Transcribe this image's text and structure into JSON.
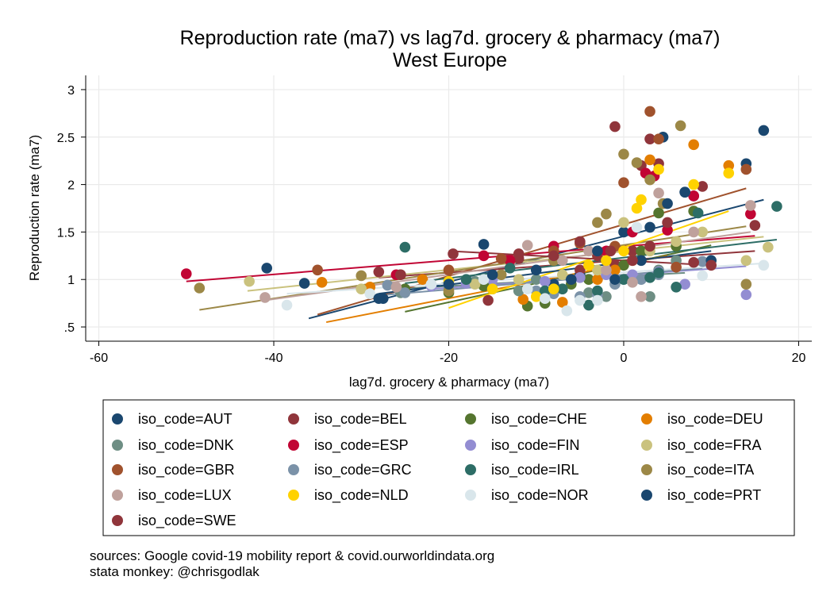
{
  "chart_data": {
    "type": "scatter",
    "title": "Reproduction rate (ma7) vs lag7d. grocery & pharmacy (ma7)",
    "subtitle": "West Europe",
    "xlabel": "lag7d. grocery & pharmacy (ma7)",
    "ylabel": "Reproduction rate (ma7)",
    "xlim": [
      -61.5,
      21.5
    ],
    "ylim": [
      0.35,
      3.15
    ],
    "x_ticks": [
      -60,
      -40,
      -20,
      0,
      20
    ],
    "x_tick_labels": [
      "-60",
      "-40",
      "-20",
      "0",
      "20"
    ],
    "y_ticks": [
      0.5,
      1,
      1.5,
      2,
      2.5,
      3
    ],
    "y_tick_labels": [
      ".5",
      "1",
      "1.5",
      "2",
      "2.5",
      "3"
    ],
    "grid": true,
    "fit_lines": true,
    "legend_position": "bottom",
    "series": [
      {
        "name": "iso_code=AUT",
        "color": "#1a476f",
        "points": [
          [
            -40.8,
            1.12
          ],
          [
            -36.5,
            0.96
          ],
          [
            -27.5,
            0.8
          ],
          [
            -16,
            1.37
          ],
          [
            -8,
            0.95
          ],
          [
            -5,
            1.05
          ],
          [
            -2,
            1.2
          ],
          [
            0,
            1.5
          ],
          [
            3,
            1.55
          ],
          [
            4.5,
            2.5
          ],
          [
            7,
            1.92
          ],
          [
            14,
            2.22
          ],
          [
            16,
            2.57
          ]
        ],
        "fit": [
          [
            -36,
            0.59
          ],
          [
            16,
            1.84
          ]
        ]
      },
      {
        "name": "iso_code=BEL",
        "color": "#90353b",
        "points": [
          [
            -28,
            1.08
          ],
          [
            -15.5,
            0.78
          ],
          [
            -12,
            1.22
          ],
          [
            -8,
            1.3
          ],
          [
            -5,
            1.1
          ],
          [
            -3,
            1.25
          ],
          [
            -1,
            1.15
          ],
          [
            1,
            1.3
          ],
          [
            2,
            2.2
          ],
          [
            3,
            2.48
          ],
          [
            4,
            2.22
          ],
          [
            8,
            1.88
          ],
          [
            9,
            1.98
          ],
          [
            15,
            1.57
          ]
        ],
        "fit": [
          [
            -28,
            1.02
          ],
          [
            15,
            1.3
          ]
        ]
      },
      {
        "name": "iso_code=CHE",
        "color": "#55752f",
        "points": [
          [
            -25,
            0.9
          ],
          [
            -20,
            0.86
          ],
          [
            -16,
            0.93
          ],
          [
            -11,
            0.72
          ],
          [
            -9,
            0.75
          ],
          [
            -6,
            0.95
          ],
          [
            -4,
            1.0
          ],
          [
            -2,
            1.1
          ],
          [
            0,
            1.15
          ],
          [
            2,
            1.3
          ],
          [
            4,
            1.7
          ],
          [
            6,
            1.35
          ],
          [
            8,
            1.72
          ]
        ],
        "fit": [
          [
            -25,
            0.66
          ],
          [
            10,
            1.36
          ]
        ]
      },
      {
        "name": "iso_code=DEU",
        "color": "#e37e00",
        "points": [
          [
            -34.5,
            0.97
          ],
          [
            -29,
            0.92
          ],
          [
            -23,
            1.0
          ],
          [
            -11.5,
            0.79
          ],
          [
            -9,
            0.85
          ],
          [
            -7,
            0.76
          ],
          [
            -3,
            1.0
          ],
          [
            -1,
            1.1
          ],
          [
            1,
            1.2
          ],
          [
            3,
            2.26
          ],
          [
            8,
            2.42
          ],
          [
            12,
            2.2
          ]
        ],
        "fit": [
          [
            -34,
            0.55
          ],
          [
            5,
            1.25
          ]
        ]
      },
      {
        "name": "iso_code=DNK",
        "color": "#6e8e84",
        "points": [
          [
            -25.5,
            0.86
          ],
          [
            -17,
            0.98
          ],
          [
            -12,
            0.88
          ],
          [
            -10,
            1.0
          ],
          [
            -7,
            0.9
          ],
          [
            -4,
            0.86
          ],
          [
            -2,
            0.82
          ],
          [
            1,
            1.0
          ],
          [
            3,
            0.82
          ],
          [
            4,
            1.1
          ],
          [
            6,
            1.2
          ]
        ],
        "fit": [
          [
            -26,
            0.9
          ],
          [
            7,
            1.07
          ]
        ]
      },
      {
        "name": "iso_code=ESP",
        "color": "#c10534",
        "points": [
          [
            -50,
            1.06
          ],
          [
            -26,
            1.05
          ],
          [
            -16,
            1.25
          ],
          [
            -13,
            1.2
          ],
          [
            -8,
            1.35
          ],
          [
            -2,
            1.3
          ],
          [
            1,
            1.5
          ],
          [
            2.5,
            2.12
          ],
          [
            3.5,
            2.09
          ],
          [
            5,
            1.52
          ],
          [
            8,
            1.88
          ],
          [
            14.5,
            1.69
          ]
        ],
        "fit": [
          [
            -50,
            0.98
          ],
          [
            15,
            1.46
          ]
        ]
      },
      {
        "name": "iso_code=FIN",
        "color": "#938dd2",
        "points": [
          [
            -22,
            0.93
          ],
          [
            -18,
            0.96
          ],
          [
            -15,
            1.0
          ],
          [
            -9,
            0.98
          ],
          [
            -5,
            1.02
          ],
          [
            -2,
            1.05
          ],
          [
            1,
            1.05
          ],
          [
            4,
            1.08
          ],
          [
            7,
            0.95
          ],
          [
            9,
            1.19
          ],
          [
            14,
            0.84
          ]
        ],
        "fit": [
          [
            -22,
            0.9
          ],
          [
            14,
            1.14
          ]
        ]
      },
      {
        "name": "iso_code=FRA",
        "color": "#cac27e",
        "points": [
          [
            -42.8,
            0.98
          ],
          [
            -30,
            0.9
          ],
          [
            -17,
            0.95
          ],
          [
            -12,
            1.0
          ],
          [
            -7,
            1.05
          ],
          [
            -3,
            1.1
          ],
          [
            0,
            1.6
          ],
          [
            3,
            1.3
          ],
          [
            6,
            1.4
          ],
          [
            9,
            1.5
          ],
          [
            14,
            1.2
          ],
          [
            16.5,
            1.34
          ]
        ],
        "fit": [
          [
            -43,
            0.88
          ],
          [
            16,
            1.45
          ]
        ]
      },
      {
        "name": "iso_code=GBR",
        "color": "#a0522d",
        "points": [
          [
            -35,
            1.1
          ],
          [
            -25.5,
            1.05
          ],
          [
            -20,
            1.1
          ],
          [
            -14,
            1.22
          ],
          [
            -8,
            1.3
          ],
          [
            -5,
            1.38
          ],
          [
            -1,
            1.35
          ],
          [
            0,
            2.02
          ],
          [
            3,
            2.77
          ],
          [
            4,
            2.48
          ],
          [
            6,
            1.13
          ],
          [
            14,
            2.16
          ]
        ],
        "fit": [
          [
            -35,
            0.63
          ],
          [
            14,
            1.96
          ]
        ]
      },
      {
        "name": "iso_code=GRC",
        "color": "#7b92a8",
        "points": [
          [
            -27,
            0.94
          ],
          [
            -25,
            0.86
          ],
          [
            -20,
            0.92
          ],
          [
            -15,
            0.9
          ],
          [
            -10,
            0.88
          ],
          [
            -8,
            0.85
          ],
          [
            -5,
            0.82
          ],
          [
            -3,
            0.84
          ],
          [
            -1,
            0.95
          ],
          [
            2,
            1.0
          ],
          [
            4,
            1.05
          ],
          [
            9,
            1.19
          ]
        ],
        "fit": [
          [
            -27,
            0.84
          ],
          [
            9,
            1.12
          ]
        ]
      },
      {
        "name": "iso_code=IRL",
        "color": "#2d6d66",
        "points": [
          [
            -25,
            1.34
          ],
          [
            -18,
            1.0
          ],
          [
            -13,
            1.12
          ],
          [
            -9,
            0.88
          ],
          [
            -7,
            0.9
          ],
          [
            -4,
            0.73
          ],
          [
            -3,
            0.88
          ],
          [
            0,
            1.0
          ],
          [
            3,
            1.02
          ],
          [
            4,
            1.07
          ],
          [
            6,
            0.92
          ],
          [
            8.5,
            1.7
          ],
          [
            17.5,
            1.77
          ]
        ],
        "fit": [
          [
            -25,
            0.96
          ],
          [
            17.5,
            1.42
          ]
        ]
      },
      {
        "name": "iso_code=ITA",
        "color": "#9c8847",
        "points": [
          [
            -48.5,
            0.91
          ],
          [
            -30,
            1.04
          ],
          [
            -20,
            0.88
          ],
          [
            -14,
            1.05
          ],
          [
            -8,
            1.2
          ],
          [
            -3,
            1.6
          ],
          [
            -2,
            1.69
          ],
          [
            0,
            2.32
          ],
          [
            1.5,
            2.23
          ],
          [
            3,
            2.05
          ],
          [
            4.5,
            1.8
          ],
          [
            6.5,
            2.62
          ],
          [
            14,
            0.95
          ]
        ],
        "fit": [
          [
            -48.5,
            0.68
          ],
          [
            14,
            1.56
          ]
        ]
      },
      {
        "name": "iso_code=LUX",
        "color": "#bfa19c",
        "points": [
          [
            -41,
            0.81
          ],
          [
            -26,
            0.92
          ],
          [
            -20,
            0.98
          ],
          [
            -11,
            1.36
          ],
          [
            -7,
            1.2
          ],
          [
            -4,
            1.3
          ],
          [
            -2,
            1.1
          ],
          [
            1,
            0.97
          ],
          [
            2,
            0.82
          ],
          [
            4,
            1.91
          ],
          [
            8,
            1.5
          ],
          [
            14.5,
            1.78
          ]
        ],
        "fit": [
          [
            -41,
            0.78
          ],
          [
            14.5,
            1.5
          ]
        ]
      },
      {
        "name": "iso_code=NLD",
        "color": "#ffd200",
        "points": [
          [
            -20,
            0.98
          ],
          [
            -15,
            0.9
          ],
          [
            -10,
            0.82
          ],
          [
            -8,
            0.9
          ],
          [
            -4,
            1.15
          ],
          [
            -2,
            1.2
          ],
          [
            0,
            1.3
          ],
          [
            1.5,
            1.75
          ],
          [
            2,
            1.84
          ],
          [
            4,
            2.16
          ],
          [
            8,
            2.0
          ],
          [
            12,
            2.12
          ]
        ],
        "fit": [
          [
            -20,
            0.7
          ],
          [
            12,
            1.72
          ]
        ]
      },
      {
        "name": "iso_code=NOR",
        "color": "#d9e6eb",
        "points": [
          [
            -38.5,
            0.73
          ],
          [
            -29,
            0.85
          ],
          [
            -22,
            0.95
          ],
          [
            -16,
            1.0
          ],
          [
            -11,
            0.9
          ],
          [
            -9,
            0.8
          ],
          [
            -6.5,
            0.67
          ],
          [
            -5,
            0.78
          ],
          [
            -3,
            0.78
          ],
          [
            -1,
            1.0
          ],
          [
            1.5,
            1.55
          ],
          [
            9,
            1.04
          ],
          [
            16,
            1.15
          ]
        ],
        "fit": [
          [
            -38.5,
            0.85
          ],
          [
            16,
            1.17
          ]
        ]
      },
      {
        "name": "iso_code=PRT",
        "color": "#1a476f",
        "points": [
          [
            -28,
            0.8
          ],
          [
            -20,
            0.95
          ],
          [
            -15,
            1.05
          ],
          [
            -10,
            1.1
          ],
          [
            -6,
            1.0
          ],
          [
            -3,
            1.3
          ],
          [
            -1,
            1.0
          ],
          [
            2,
            1.2
          ],
          [
            5,
            1.8
          ],
          [
            7,
            1.92
          ],
          [
            10,
            1.2
          ]
        ],
        "fit": [
          [
            -28,
            0.85
          ],
          [
            10,
            1.3
          ]
        ]
      },
      {
        "name": "iso_code=SWE",
        "color": "#90353b",
        "points": [
          [
            -25.5,
            1.05
          ],
          [
            -19.5,
            1.27
          ],
          [
            -12,
            1.27
          ],
          [
            -8,
            1.25
          ],
          [
            -5,
            1.4
          ],
          [
            -1.5,
            1.3
          ],
          [
            -1,
            2.61
          ],
          [
            1,
            1.2
          ],
          [
            3,
            1.35
          ],
          [
            5,
            1.6
          ],
          [
            8,
            1.18
          ],
          [
            10,
            1.15
          ]
        ],
        "fit": [
          [
            -20,
            1.3
          ],
          [
            10,
            1.15
          ]
        ]
      }
    ]
  },
  "notes": {
    "line1": "sources: Google covid-19 mobility report & covid.ourworldindata.org",
    "line2": "stata monkey: @chrisgodlak"
  }
}
